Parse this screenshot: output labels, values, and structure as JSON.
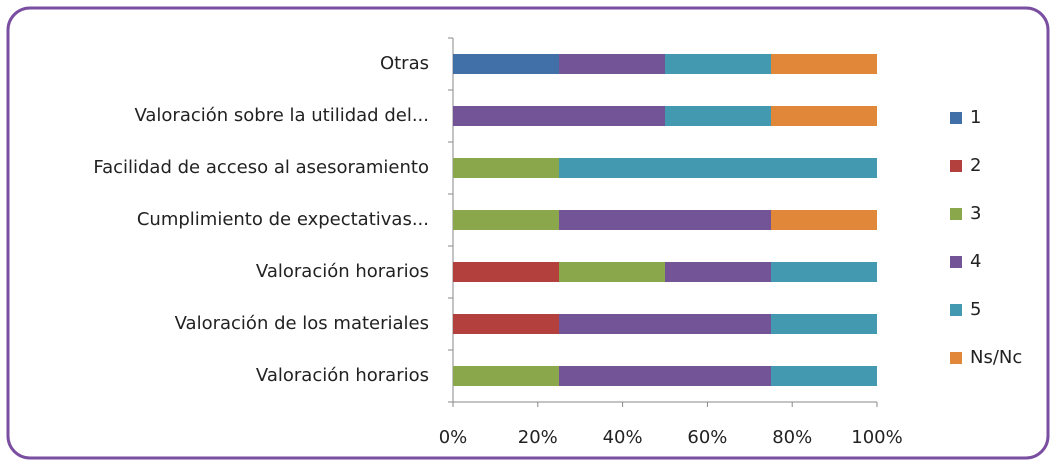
{
  "chart_data": {
    "type": "stacked_hbar_100",
    "categories": [
      "Otras",
      "Valoración sobre la utilidad del...",
      "Facilidad de acceso al asesoramiento",
      "Cumplimiento de expectativas...",
      "Valoración horarios",
      "Valoración de los materiales",
      "Valoración horarios"
    ],
    "series": [
      {
        "name": "1",
        "color": "#4170a8",
        "values": [
          25,
          0,
          0,
          0,
          0,
          0,
          0
        ]
      },
      {
        "name": "2",
        "color": "#b3403d",
        "values": [
          0,
          0,
          0,
          0,
          25,
          25,
          0
        ]
      },
      {
        "name": "3",
        "color": "#8aa84b",
        "values": [
          0,
          0,
          25,
          25,
          25,
          0,
          25
        ]
      },
      {
        "name": "4",
        "color": "#735497",
        "values": [
          25,
          50,
          0,
          50,
          25,
          50,
          50
        ]
      },
      {
        "name": "5",
        "color": "#4299b0",
        "values": [
          25,
          25,
          75,
          0,
          25,
          25,
          25
        ]
      },
      {
        "name": "Ns/Nc",
        "color": "#e0873a",
        "values": [
          25,
          25,
          0,
          25,
          0,
          0,
          0
        ]
      }
    ],
    "xlim": [
      0,
      100
    ],
    "xticks": [
      {
        "value": 0,
        "label": "0%"
      },
      {
        "value": 20,
        "label": "20%"
      },
      {
        "value": 40,
        "label": "40%"
      },
      {
        "value": 60,
        "label": "60%"
      },
      {
        "value": 80,
        "label": "80%"
      },
      {
        "value": 100,
        "label": "100%"
      }
    ],
    "legend": "right"
  }
}
